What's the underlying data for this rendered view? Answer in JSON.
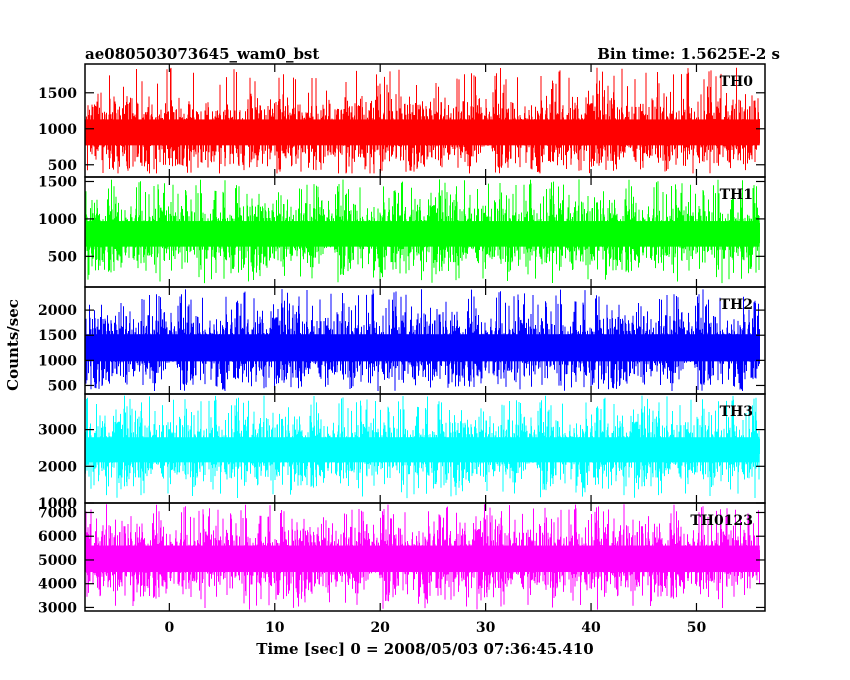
{
  "chart_data": {
    "type": "line",
    "title_left": "ae080503073645_wam0_bst",
    "title_right": "Bin time: 1.5625E-2 s",
    "xlabel": "Time [sec] 0 = 2008/05/03 07:36:45.410",
    "ylabel": "Counts/sec",
    "xlim": [
      -8,
      56.5
    ],
    "xticks": [
      0,
      10,
      20,
      30,
      40,
      50
    ],
    "data_x_range": [
      -8.0,
      56.0
    ],
    "bin_time": 0.015625,
    "panels": [
      {
        "name": "TH0",
        "color": "#ff0000",
        "ylim": [
          330,
          1900
        ],
        "yticks": [
          500,
          1000,
          1500
        ],
        "mean": 950,
        "noise_sd": 200,
        "min": 380,
        "max": 1850
      },
      {
        "name": "TH1",
        "color": "#00ff00",
        "ylim": [
          90,
          1560
        ],
        "yticks": [
          500,
          1000,
          1500
        ],
        "mean": 800,
        "noise_sd": 190,
        "min": 140,
        "max": 1530
      },
      {
        "name": "TH2",
        "color": "#0000ff",
        "ylim": [
          330,
          2460
        ],
        "yticks": [
          500,
          1000,
          1500,
          2000
        ],
        "mean": 1250,
        "noise_sd": 300,
        "min": 390,
        "max": 2420
      },
      {
        "name": "TH3",
        "color": "#00ffff",
        "ylim": [
          1000,
          3970
        ],
        "yticks": [
          1000,
          2000,
          3000
        ],
        "mean": 2450,
        "noise_sd": 380,
        "min": 1130,
        "max": 3930
      },
      {
        "name": "TH0123",
        "color": "#ff00ff",
        "ylim": [
          2850,
          7400
        ],
        "yticks": [
          3000,
          4000,
          5000,
          6000,
          7000
        ],
        "mean": 5050,
        "noise_sd": 620,
        "min": 2900,
        "max": 7350
      }
    ]
  }
}
